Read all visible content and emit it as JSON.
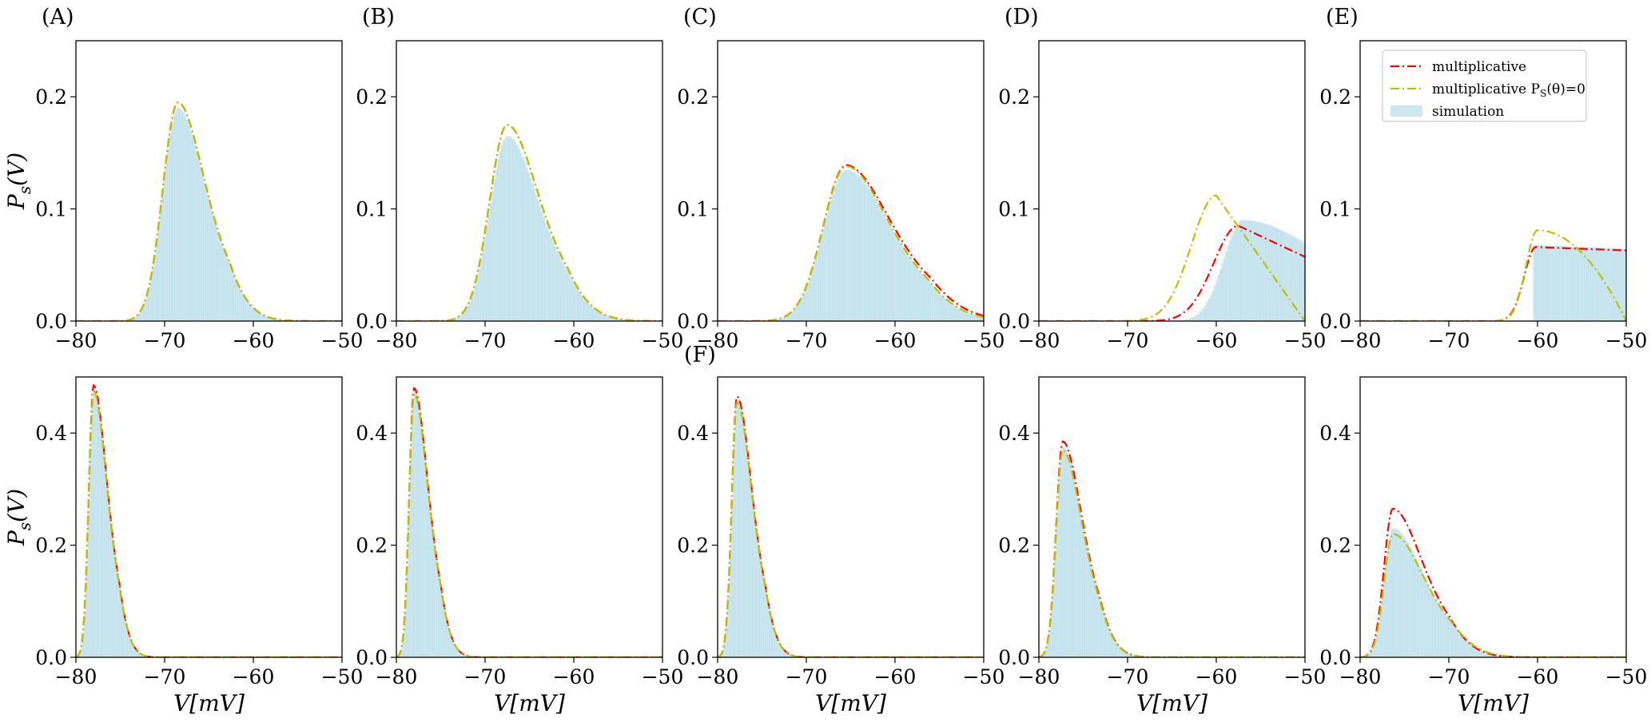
{
  "figure": {
    "ylabel": "P_s(V)",
    "xlabel": "V[mV]",
    "panel_labels": [
      "(A)",
      "(B)",
      "(C)",
      "(D)",
      "(E)",
      "(F)"
    ],
    "legend": [
      "multiplicative",
      "multiplicative P_S(θ)=0",
      "simulation"
    ],
    "colors": {
      "multiplicative": "#ff0000",
      "multiplicative_ps0": "#bfbf00",
      "simulation": "#add8e6",
      "axes": "#000000"
    }
  },
  "chart_data": [
    {
      "type": "area",
      "row": "top",
      "panel": "(A)",
      "xlim": [
        -80,
        -50
      ],
      "ylim": [
        0,
        0.25
      ],
      "xticks": [
        "−80",
        "−70",
        "−60",
        "−50"
      ],
      "yticks": [
        "0.0",
        "0.1",
        "0.2"
      ],
      "ylabel": "P_s(V)",
      "xlabel": "",
      "series": [
        {
          "name": "multiplicative",
          "peak_x": -68.5,
          "peak_y": 0.195,
          "left_width": 1.7,
          "right_width": 2.9
        },
        {
          "name": "multiplicative P_S(θ)=0",
          "peak_x": -68.5,
          "peak_y": 0.195,
          "left_width": 1.7,
          "right_width": 2.9
        },
        {
          "name": "simulation",
          "peak_x": -68.5,
          "peak_y": 0.19,
          "left_width": 1.7,
          "right_width": 2.9
        }
      ]
    },
    {
      "type": "area",
      "row": "top",
      "panel": "(B)",
      "xlim": [
        -80,
        -50
      ],
      "ylim": [
        0,
        0.25
      ],
      "xticks": [
        "−80",
        "−70",
        "−60",
        "−50"
      ],
      "yticks": [
        "0.0",
        "0.1",
        "0.2"
      ],
      "ylabel": "",
      "xlabel": "",
      "series": [
        {
          "name": "multiplicative",
          "peak_x": -67.5,
          "peak_y": 0.175,
          "left_width": 2.0,
          "right_width": 3.4
        },
        {
          "name": "multiplicative P_S(θ)=0",
          "peak_x": -67.5,
          "peak_y": 0.175,
          "left_width": 2.0,
          "right_width": 3.4
        },
        {
          "name": "simulation",
          "peak_x": -67.5,
          "peak_y": 0.165,
          "left_width": 2.0,
          "right_width": 3.4
        }
      ]
    },
    {
      "type": "area",
      "row": "top",
      "panel": "(C)",
      "xlim": [
        -80,
        -50
      ],
      "ylim": [
        0,
        0.25
      ],
      "xticks": [
        "−80",
        "−70",
        "−60",
        "−50"
      ],
      "yticks": [
        "0.0",
        "0.1",
        "0.2"
      ],
      "ylabel": "",
      "xlabel": "",
      "series": [
        {
          "name": "multiplicative",
          "peak_x": -65.5,
          "peak_y": 0.139,
          "left_width": 2.6,
          "right_width": 4.8
        },
        {
          "name": "multiplicative P_S(θ)=0",
          "peak_x": -65.5,
          "peak_y": 0.138,
          "left_width": 2.6,
          "right_width": 4.6
        },
        {
          "name": "simulation",
          "peak_x": -65.5,
          "peak_y": 0.135,
          "left_width": 2.6,
          "right_width": 4.6
        }
      ]
    },
    {
      "type": "area",
      "row": "top",
      "panel": "(D)",
      "xlim": [
        -80,
        -50
      ],
      "ylim": [
        0,
        0.25
      ],
      "xticks": [
        "−80",
        "−70",
        "−60",
        "−50"
      ],
      "yticks": [
        "0.0",
        "0.1",
        "0.2"
      ],
      "ylabel": "",
      "xlabel": "",
      "series": [
        {
          "name": "multiplicative",
          "peak_x": -57.5,
          "peak_y": 0.085,
          "left_width": 2.8,
          "right_width": 13.0
        },
        {
          "name": "multiplicative P_S(θ)=0",
          "peak_x": -60.0,
          "peak_y": 0.112,
          "left_width": 2.8,
          "right_width": 6.8
        },
        {
          "name": "simulation",
          "peak_x": -57.0,
          "peak_y": 0.09,
          "left_width": 2.2,
          "right_width": 9.0
        }
      ]
    },
    {
      "type": "area",
      "row": "top",
      "panel": "(E)",
      "xlim": [
        -80,
        -50
      ],
      "ylim": [
        0,
        0.25
      ],
      "xticks": [
        "−80",
        "−70",
        "−60",
        "−50"
      ],
      "yticks": [
        "0.0",
        "0.1",
        "0.2"
      ],
      "ylabel": "",
      "xlabel": "",
      "legend_position": "upper left",
      "series": [
        {
          "name": "multiplicative",
          "peak_x": -60.2,
          "peak_y": 0.066,
          "left_width": 1.3,
          "right_width": 45.0
        },
        {
          "name": "multiplicative P_S(θ)=0",
          "peak_x": -60.0,
          "peak_y": 0.081,
          "left_width": 1.3,
          "right_width": 8.0
        },
        {
          "name": "simulation",
          "peak_x": -60.5,
          "peak_y": 0.068,
          "left_width": 0.0,
          "right_width": 28.0
        }
      ]
    },
    {
      "type": "area",
      "row": "bottom",
      "panel": "",
      "xlim": [
        -80,
        -50
      ],
      "ylim": [
        0,
        0.5
      ],
      "xticks": [
        "−80",
        "−70",
        "−60",
        "−50"
      ],
      "yticks": [
        "0.0",
        "0.2",
        "0.4"
      ],
      "ylabel": "P_s(V)",
      "xlabel": "V[mV]",
      "series": [
        {
          "name": "multiplicative",
          "peak_x": -78.0,
          "peak_y": 0.485,
          "left_width": 0.55,
          "right_width": 1.45
        },
        {
          "name": "multiplicative P_S(θ)=0",
          "peak_x": -78.0,
          "peak_y": 0.475,
          "left_width": 0.55,
          "right_width": 1.45
        },
        {
          "name": "simulation",
          "peak_x": -78.0,
          "peak_y": 0.48,
          "left_width": 0.55,
          "right_width": 1.45
        }
      ]
    },
    {
      "type": "area",
      "row": "bottom",
      "panel": "",
      "xlim": [
        -80,
        -50
      ],
      "ylim": [
        0,
        0.5
      ],
      "xticks": [
        "−80",
        "−70",
        "−60",
        "−50"
      ],
      "yticks": [
        "0.0",
        "0.2",
        "0.4"
      ],
      "ylabel": "",
      "xlabel": "V[mV]",
      "series": [
        {
          "name": "multiplicative",
          "peak_x": -78.0,
          "peak_y": 0.48,
          "left_width": 0.55,
          "right_width": 1.5
        },
        {
          "name": "multiplicative P_S(θ)=0",
          "peak_x": -78.0,
          "peak_y": 0.47,
          "left_width": 0.55,
          "right_width": 1.5
        },
        {
          "name": "simulation",
          "peak_x": -78.0,
          "peak_y": 0.475,
          "left_width": 0.55,
          "right_width": 1.5
        }
      ]
    },
    {
      "type": "area",
      "row": "bottom",
      "panel": "(F)",
      "xlim": [
        -80,
        -50
      ],
      "ylim": [
        0,
        0.5
      ],
      "xticks": [
        "−80",
        "−70",
        "−60",
        "−50"
      ],
      "yticks": [
        "0.0",
        "0.2",
        "0.4"
      ],
      "ylabel": "",
      "xlabel": "V[mV]",
      "series": [
        {
          "name": "multiplicative",
          "peak_x": -77.8,
          "peak_y": 0.465,
          "left_width": 0.6,
          "right_width": 1.6
        },
        {
          "name": "multiplicative P_S(θ)=0",
          "peak_x": -77.8,
          "peak_y": 0.455,
          "left_width": 0.6,
          "right_width": 1.6
        },
        {
          "name": "simulation",
          "peak_x": -77.8,
          "peak_y": 0.46,
          "left_width": 0.6,
          "right_width": 1.6
        }
      ]
    },
    {
      "type": "area",
      "row": "bottom",
      "panel": "",
      "xlim": [
        -80,
        -50
      ],
      "ylim": [
        0,
        0.5
      ],
      "xticks": [
        "−80",
        "−70",
        "−60",
        "−50"
      ],
      "yticks": [
        "0.0",
        "0.2",
        "0.4"
      ],
      "ylabel": "",
      "xlabel": "V[mV]",
      "series": [
        {
          "name": "multiplicative",
          "peak_x": -77.3,
          "peak_y": 0.385,
          "left_width": 0.75,
          "right_width": 2.1
        },
        {
          "name": "multiplicative P_S(θ)=0",
          "peak_x": -77.3,
          "peak_y": 0.37,
          "left_width": 0.75,
          "right_width": 2.1
        },
        {
          "name": "simulation",
          "peak_x": -77.3,
          "peak_y": 0.375,
          "left_width": 0.75,
          "right_width": 2.1
        }
      ]
    },
    {
      "type": "area",
      "row": "bottom",
      "panel": "",
      "xlim": [
        -80,
        -50
      ],
      "ylim": [
        0,
        0.5
      ],
      "xticks": [
        "−80",
        "−70",
        "−60",
        "−50"
      ],
      "yticks": [
        "0.0",
        "0.2",
        "0.4"
      ],
      "ylabel": "",
      "xlabel": "V[mV]",
      "series": [
        {
          "name": "multiplicative",
          "peak_x": -76.3,
          "peak_y": 0.265,
          "left_width": 1.0,
          "right_width": 3.2
        },
        {
          "name": "multiplicative P_S(θ)=0",
          "peak_x": -76.3,
          "peak_y": 0.22,
          "left_width": 1.0,
          "right_width": 3.4
        },
        {
          "name": "simulation",
          "peak_x": -76.3,
          "peak_y": 0.23,
          "left_width": 1.0,
          "right_width": 3.3
        }
      ]
    }
  ]
}
